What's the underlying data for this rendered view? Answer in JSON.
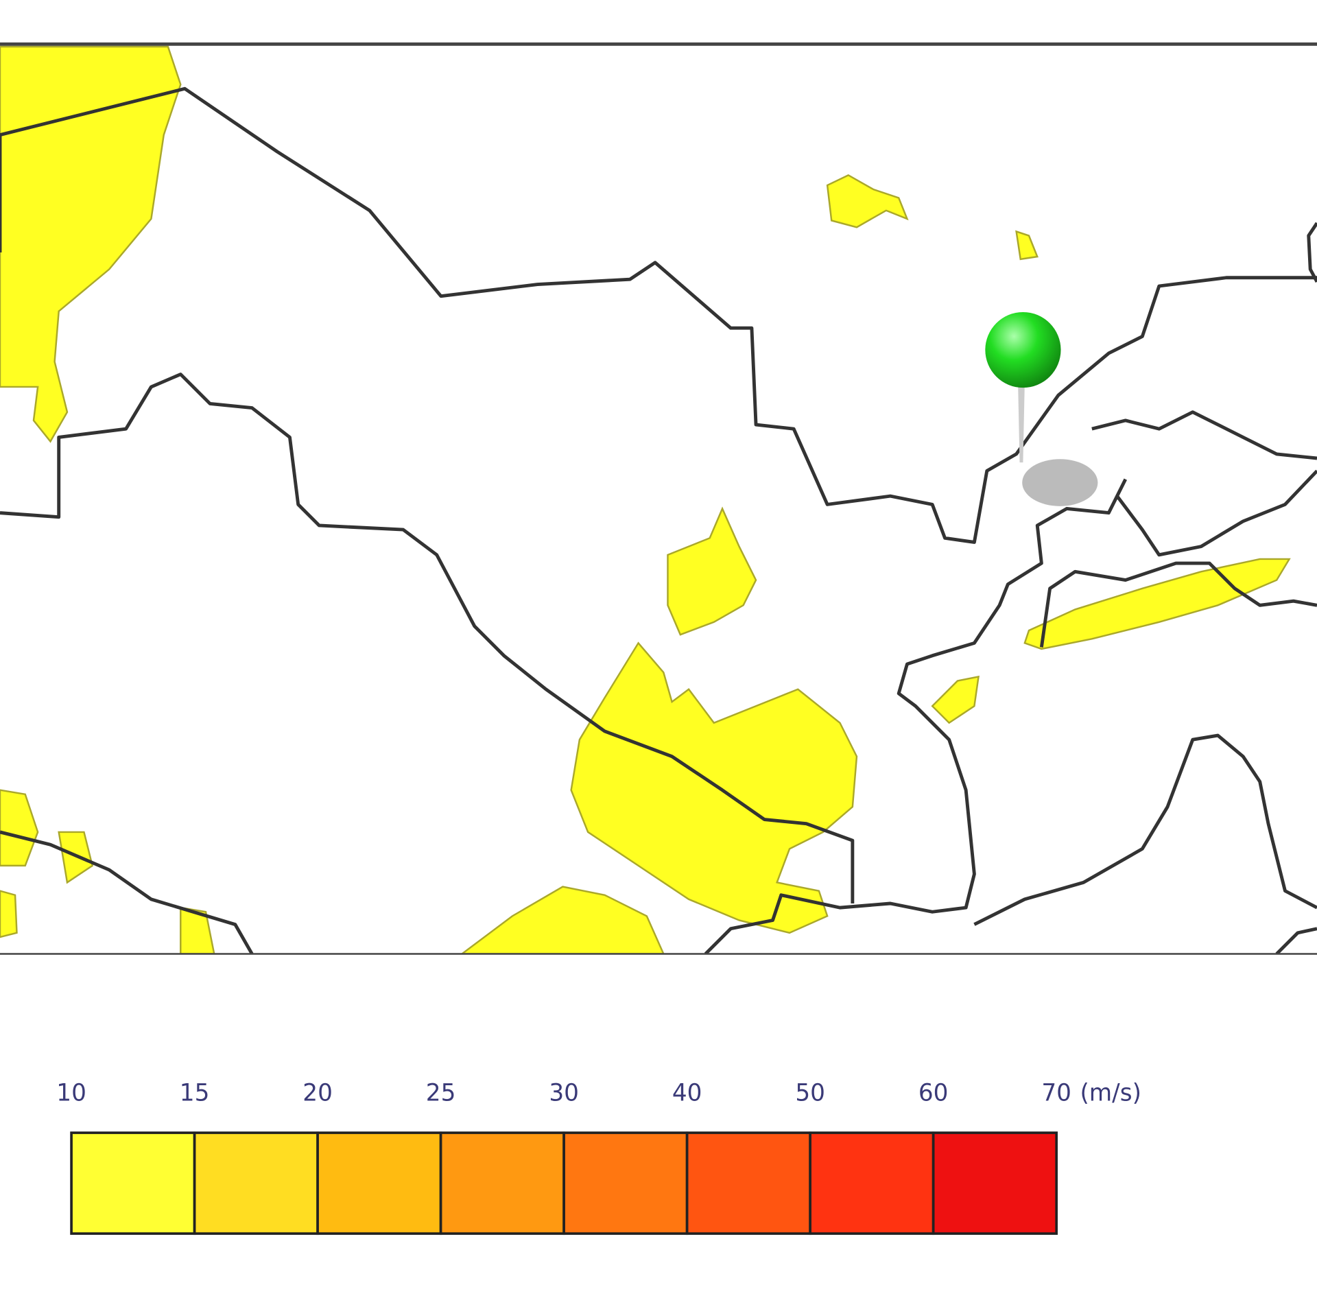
{
  "legend": {
    "ticks": [
      10,
      15,
      20,
      25,
      30,
      40,
      50,
      60,
      70
    ],
    "unit": "(m/s)",
    "colors": [
      "#ffff33",
      "#ffdd22",
      "#ffbb11",
      "#ff9911",
      "#ff7711",
      "#ff5511",
      "#ff3311",
      "#ee1111"
    ]
  }
}
